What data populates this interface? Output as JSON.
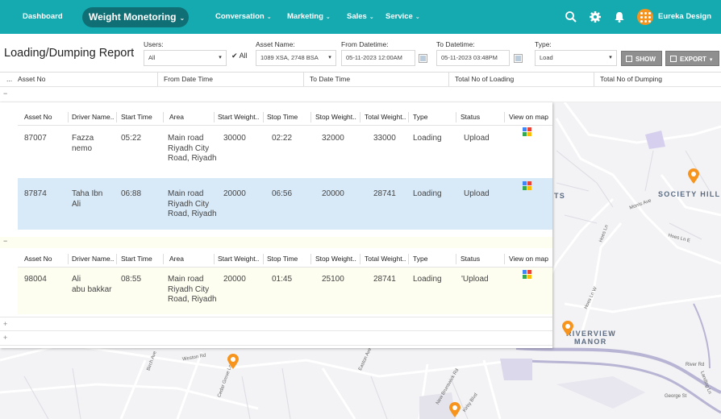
{
  "nav": {
    "dashboard": "Dashboard",
    "weight_monetoring": "Weight Monetoring",
    "conversation": "Conversation",
    "marketing": "Marketing",
    "sales": "Sales",
    "service": "Service",
    "caret": "⌄"
  },
  "icons": [
    "search-icon",
    "gear-icon",
    "bell-icon",
    "avatar-icon",
    "calendar-icon",
    "show-icon",
    "export-icon",
    "map-view-icon",
    "location-pin-icon"
  ],
  "colors": {
    "topbar": "#14aab0",
    "nav_pill": "#0f6f74",
    "avatar": "#f7941d",
    "selected_row": "#d8e9f8",
    "group2_bg": "#fdfdf0",
    "pin": "#f7941d"
  },
  "user": {
    "name": "Eureka Design"
  },
  "report": {
    "title": "Loading/Dumping Report"
  },
  "filters": {
    "users_label": "Users:",
    "users_value": "All",
    "all_checkbox_label": "All",
    "asset_label": "Asset Name:",
    "asset_value": "1089 XSA, 2748 BSA",
    "from_label": "From Datetime:",
    "from_value": "05-11-2023 12:00AM",
    "to_label": "To Datetime:",
    "to_value": "05-11-2023 03:48PM",
    "type_label": "Type:",
    "type_value": "Load",
    "show_button": "SHOW",
    "export_button": "EXPORT",
    "dropdown_arrow": "▾"
  },
  "summary_columns": [
    "...",
    "Asset No",
    "From Date Time",
    "To Date Time",
    "Total No of Loading",
    "Total No of Dumping"
  ],
  "detail_columns": [
    "Asset No",
    "Driver Name..",
    "Start Time",
    "Area",
    "Start Weight..",
    "Stop Time",
    "Stop Weight..",
    "Total Weight..",
    "Type",
    "Status",
    "View on map"
  ],
  "toggles": {
    "minus": "−",
    "plus": "+"
  },
  "groups": [
    {
      "rows": [
        {
          "asset_no": "87007",
          "driver": "Fazza\nnemo",
          "start_time": "05:22",
          "area": "Main road\nRiyadh City\nRoad, Riyadh",
          "start_weight": "30000",
          "stop_time": "02:22",
          "stop_weight": "32000",
          "total_weight": "33000",
          "type": "Loading",
          "status": "Upload"
        },
        {
          "asset_no": "87874",
          "driver": "Taha Ibn\nAli",
          "start_time": "06:88",
          "area": "Main road\nRiyadh City\nRoad, Riyadh",
          "start_weight": "20000",
          "stop_time": "06:56",
          "stop_weight": "20000",
          "total_weight": "28741",
          "type": "Loading",
          "status": "Upload"
        }
      ]
    },
    {
      "rows": [
        {
          "asset_no": "98004",
          "driver": "Ali\nabu bakkar",
          "start_time": "08:55",
          "area": "Main road\nRiyadh City\nRoad, Riyadh",
          "start_weight": "20000",
          "stop_time": "01:45",
          "stop_weight": "25100",
          "total_weight": "28741",
          "type": "Loading",
          "status": "'Upload"
        }
      ]
    }
  ],
  "map": {
    "labels": {
      "ts": "TS",
      "society_hill": "SOCIETY HILL",
      "riverview": "RIVERVIEW",
      "manor": "MANOR"
    },
    "roads": {
      "morris_ave": "Morris Ave",
      "hoes_ln_e": "Hoes Ln E",
      "hoes_ln_w": "Hoes Ln W",
      "weston_rd": "Weston Rd",
      "river_rd": "River Rd",
      "georges_st": "George St",
      "new_brunswick": "New Brunswick Rd",
      "cedar_grove": "Cedar Grove Ln",
      "hoes_ln": "Hoes Ln",
      "landing_ln": "Landing Ln",
      "birch_ave": "Birch Ave",
      "easton_ave": "Easton Ave",
      "kirby_blvd": "Kirby Blvd"
    }
  }
}
